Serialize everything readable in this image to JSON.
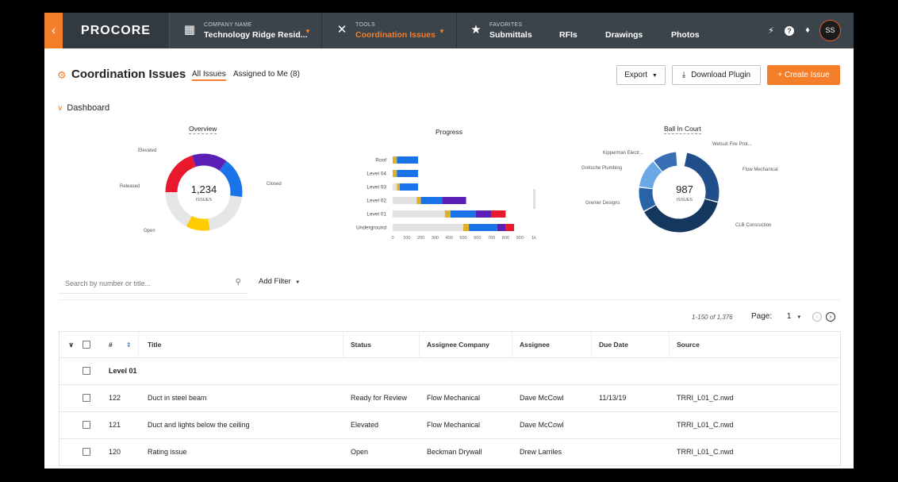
{
  "nav": {
    "back_icon": "chevron-left-icon",
    "logo": "PROCORE",
    "company": {
      "label": "COMPANY NAME",
      "value": "Technology Ridge Resid..."
    },
    "tools": {
      "label": "TOOLS",
      "value": "Coordination Issues"
    },
    "favorites": {
      "label": "FAVORITES",
      "value": "Submittals"
    },
    "links": [
      "RFIs",
      "Drawings",
      "Photos"
    ],
    "help": "?",
    "avatar": "SS",
    "accent": "#f47e2a",
    "bar_color": "#3b444b"
  },
  "header": {
    "title": "Coordination Issues",
    "tabs": [
      "All Issues",
      "Assigned to Me (8)"
    ],
    "export": "Export",
    "download": "Download Plugin",
    "create": "+ Create Issue"
  },
  "dashboard": {
    "label": "Dashboard",
    "overview": {
      "title": "Overview",
      "total": "1,234",
      "unit": "ISSUES",
      "labels": [
        "Elevated",
        "Released",
        "Open",
        "Closed"
      ]
    },
    "progress": {
      "title": "Progress",
      "categories": [
        "Roof",
        "Level 04",
        "Level 03",
        "Level 02",
        "Level 01",
        "Underground"
      ],
      "ticks": [
        "0",
        "100",
        "200",
        "300",
        "400",
        "500",
        "600",
        "700",
        "800",
        "900",
        "1k"
      ]
    },
    "ball_in_court": {
      "title": "Ball In Court",
      "total": "987",
      "unit": "ISSUES",
      "labels": [
        "Kipperman Electr...",
        "Wetsuit Fire Prot...",
        "Gretsche Plumbing",
        "Flow Mechanical",
        "Grenier Designs",
        "CLB Consruction"
      ]
    }
  },
  "chart_data": [
    {
      "type": "pie",
      "title": "Overview",
      "labels": [
        "Elevated",
        "Released",
        "Open",
        "Closed"
      ],
      "values": [
        20,
        15,
        17,
        48
      ],
      "colors": [
        "#e8192c",
        "#5c1fb5",
        "#1a73e8",
        "#e6e6e6"
      ],
      "extra_colors": [
        "#ffcc00"
      ]
    },
    {
      "type": "bar",
      "title": "Progress",
      "orientation": "horizontal",
      "categories": [
        "Roof",
        "Level 04",
        "Level 03",
        "Level 02",
        "Level 01",
        "Underground"
      ],
      "series": [
        {
          "values": [
            0,
            0,
            30,
            170,
            370,
            500
          ],
          "color": "#e2e2e2"
        },
        {
          "values": [
            30,
            30,
            20,
            30,
            40,
            40
          ],
          "color": "#e0b12a"
        },
        {
          "values": [
            150,
            150,
            130,
            150,
            180,
            200
          ],
          "color": "#1a73e8"
        },
        {
          "values": [
            0,
            0,
            0,
            170,
            110,
            60
          ],
          "color": "#5c1fb5"
        },
        {
          "values": [
            0,
            0,
            0,
            0,
            100,
            60
          ],
          "color": "#e8192c"
        }
      ],
      "xlim": [
        0,
        1000
      ]
    },
    {
      "type": "pie",
      "title": "Ball In Court",
      "labels": [
        "Kipperman Electr...",
        "Wetsuit Fire Prot...",
        "Flow Mechanical",
        "CLB Consruction",
        "Grenier Designs",
        "Gretsche Plumbing"
      ],
      "values": [
        10,
        4,
        26,
        38,
        10,
        12
      ],
      "colors": [
        "#3b6fb5",
        "#ffffff",
        "#1f4e8a",
        "#14375f",
        "#2a62a8",
        "#6aa8e6"
      ]
    }
  ],
  "filter": {
    "search_placeholder": "Search by number or title...",
    "add_filter": "Add Filter"
  },
  "pagination": {
    "range": "1-150 of 1,376",
    "label": "Page:",
    "value": "1"
  },
  "table": {
    "headers": [
      "#",
      "Title",
      "Status",
      "Assignee Company",
      "Assignee",
      "Due Date",
      "Source"
    ],
    "group": "Level 01",
    "rows": [
      {
        "num": "122",
        "title": "Duct in steel beam",
        "status": "Ready for Review",
        "company": "Flow Mechanical",
        "assignee": "Dave McCowl",
        "due": "11/13/19",
        "source": "TRRI_L01_C.nwd"
      },
      {
        "num": "121",
        "title": "Duct and lights below the ceiling",
        "status": "Elevated",
        "company": "Flow Mechanical",
        "assignee": "Dave McCowl",
        "due": "",
        "source": "TRRI_L01_C.nwd"
      },
      {
        "num": "120",
        "title": "Rating issue",
        "status": "Open",
        "company": "Beckman Drywall",
        "assignee": "Drew Larriles",
        "due": "",
        "source": "TRRI_L01_C.nwd"
      }
    ]
  }
}
